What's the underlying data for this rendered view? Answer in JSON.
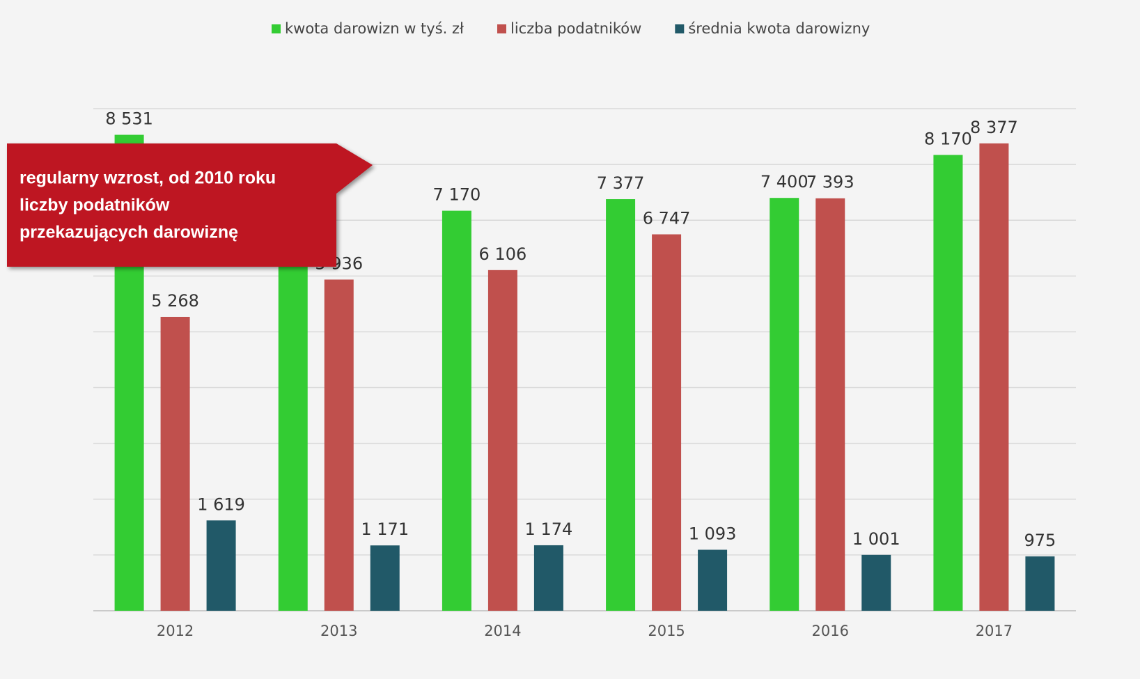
{
  "chart_data": {
    "type": "bar",
    "categories": [
      "2012",
      "2013",
      "2014",
      "2015",
      "2016",
      "2017"
    ],
    "series": [
      {
        "name": "kwota darowizn w tyś. zł",
        "color": "#33cc33",
        "values": [
          8531,
          6950,
          7170,
          7377,
          7400,
          8170
        ],
        "value_labels": [
          "8 531",
          null,
          "7 170",
          "7 377",
          "7 400",
          "8 170"
        ]
      },
      {
        "name": "liczba podatników",
        "color": "#c0504d",
        "values": [
          5268,
          5936,
          6106,
          6747,
          7393,
          8377
        ],
        "value_labels": [
          "5 268",
          "5 936",
          "6 106",
          "6 747",
          "7 393",
          "8 377"
        ]
      },
      {
        "name": "średnia kwota darowizny",
        "color": "#215968",
        "values": [
          1619,
          1171,
          1174,
          1093,
          1001,
          975
        ],
        "value_labels": [
          "1 619",
          "1 171",
          "1 174",
          "1 093",
          "1 001",
          "975"
        ]
      }
    ],
    "ylim": [
      0,
      9000
    ],
    "yticks": [
      0,
      1000,
      2000,
      3000,
      4000,
      5000,
      6000,
      7000,
      8000,
      9000
    ],
    "grid": true,
    "annotation": [
      "regularny wzrost, od 2010 roku",
      "liczby podatników",
      "przekazujących darowiznę"
    ]
  }
}
